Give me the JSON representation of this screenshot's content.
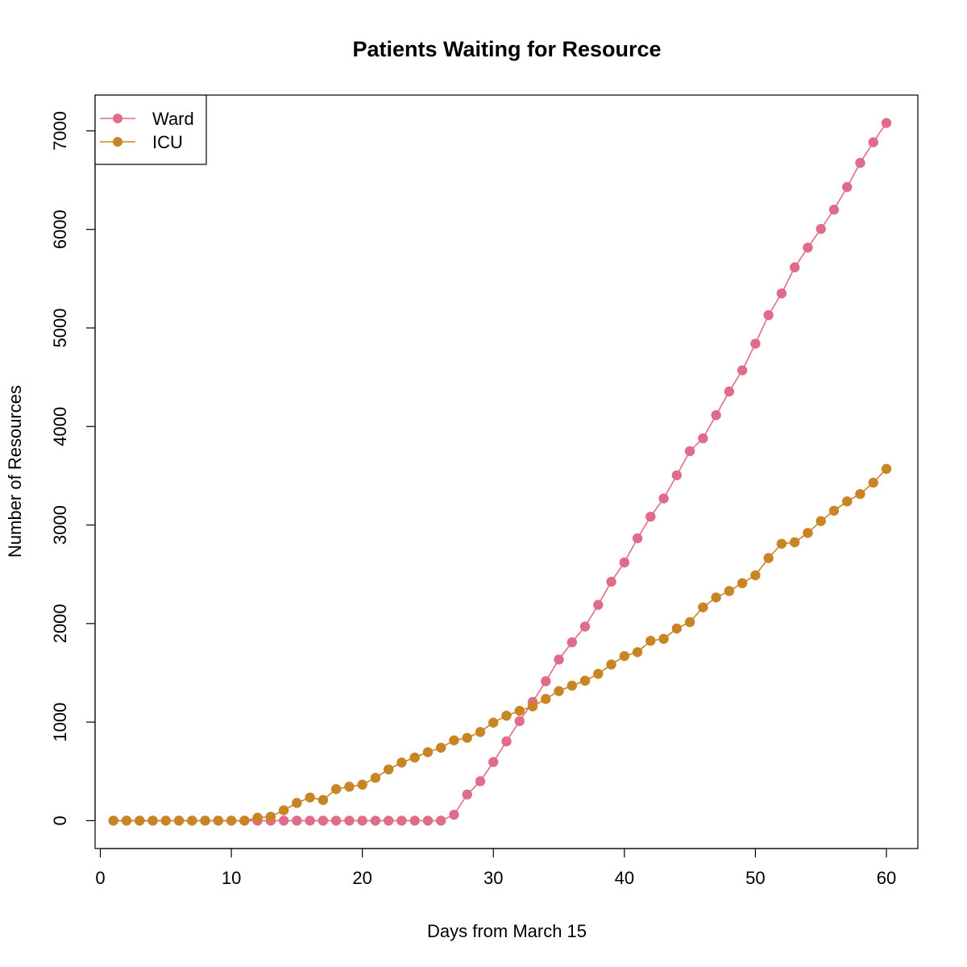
{
  "chart_data": {
    "type": "line",
    "title": "Patients Waiting for Resource",
    "xlabel": "Days from March 15",
    "ylabel": "Number of Resources",
    "xlim": [
      -0.4,
      62.4
    ],
    "ylim": [
      -283,
      7363
    ],
    "x_ticks": [
      0,
      10,
      20,
      30,
      40,
      50,
      60
    ],
    "y_ticks": [
      0,
      1000,
      2000,
      3000,
      4000,
      5000,
      6000,
      7000
    ],
    "grid": false,
    "legend_position": "top-left",
    "x": [
      1,
      2,
      3,
      4,
      5,
      6,
      7,
      8,
      9,
      10,
      11,
      12,
      13,
      14,
      15,
      16,
      17,
      18,
      19,
      20,
      21,
      22,
      23,
      24,
      25,
      26,
      27,
      28,
      29,
      30,
      31,
      32,
      33,
      34,
      35,
      36,
      37,
      38,
      39,
      40,
      41,
      42,
      43,
      44,
      45,
      46,
      47,
      48,
      49,
      50,
      51,
      52,
      53,
      54,
      55,
      56,
      57,
      58,
      59,
      60
    ],
    "series": [
      {
        "name": "Ward",
        "color": "#DF6D8A",
        "values": [
          0,
          0,
          0,
          0,
          0,
          0,
          0,
          0,
          0,
          0,
          0,
          0,
          0,
          0,
          0,
          0,
          0,
          0,
          0,
          0,
          0,
          0,
          0,
          0,
          0,
          0,
          60,
          265,
          400,
          595,
          805,
          1010,
          1205,
          1415,
          1635,
          1810,
          1970,
          2190,
          2425,
          2620,
          2865,
          3085,
          3270,
          3505,
          3750,
          3880,
          4115,
          4355,
          4570,
          4840,
          5130,
          5350,
          5615,
          5815,
          6005,
          6200,
          6430,
          6675,
          6885,
          7080
        ]
      },
      {
        "name": "ICU",
        "color": "#C98525",
        "values": [
          0,
          0,
          0,
          0,
          0,
          0,
          0,
          0,
          0,
          0,
          0,
          30,
          40,
          105,
          180,
          235,
          210,
          320,
          345,
          365,
          435,
          520,
          590,
          640,
          695,
          740,
          815,
          840,
          900,
          995,
          1065,
          1115,
          1160,
          1235,
          1315,
          1370,
          1420,
          1490,
          1585,
          1670,
          1710,
          1825,
          1845,
          1950,
          2015,
          2165,
          2265,
          2330,
          2410,
          2490,
          2665,
          2810,
          2825,
          2920,
          3040,
          3145,
          3240,
          3315,
          3430,
          3570
        ]
      }
    ]
  }
}
